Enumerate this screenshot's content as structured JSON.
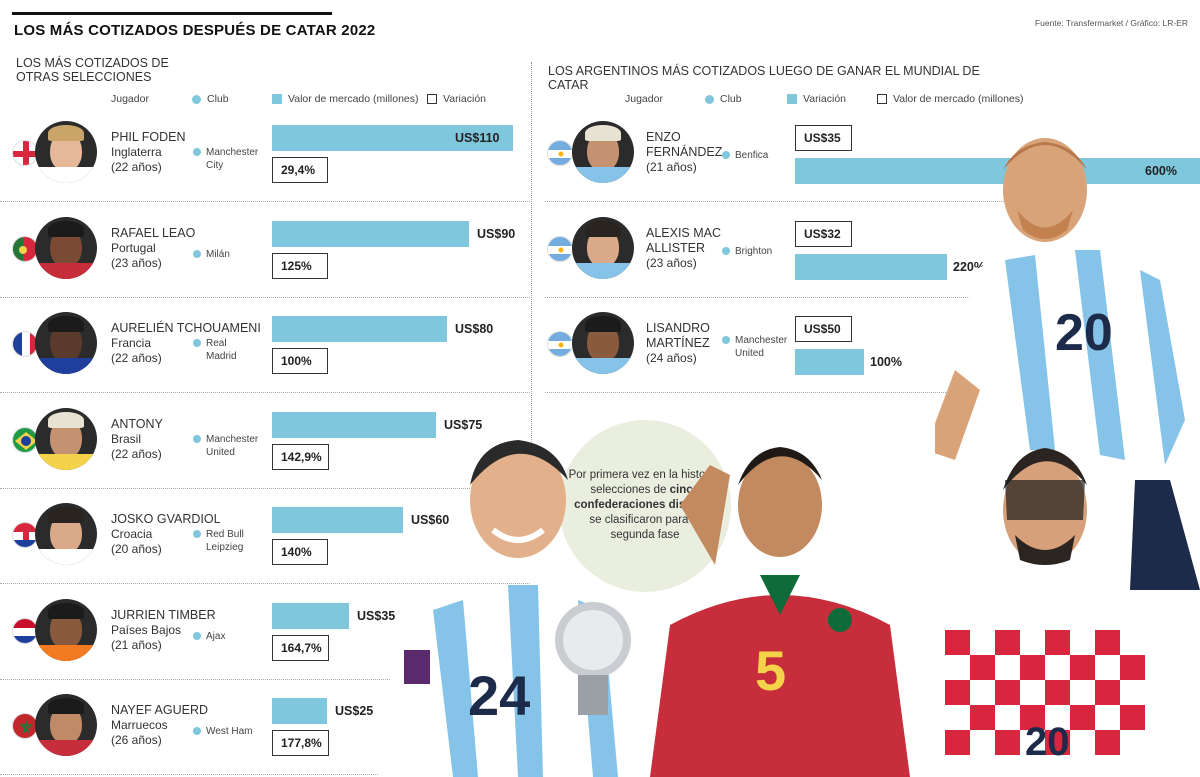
{
  "header": {
    "title": "LOS MÁS COTIZADOS DESPUÉS DE CATAR 2022",
    "source": "Fuente: Transfermarket / Gráfico: LR-ER"
  },
  "left_panel": {
    "subtitle": "LOS MÁS COTIZADOS DE OTRAS SELECCIONES",
    "legend": {
      "player": "Jugador",
      "club": "Club",
      "value": "Valor de mercado (millones)",
      "variation": "Variación"
    }
  },
  "right_panel": {
    "subtitle": "LOS ARGENTINOS MÁS COTIZADOS LUEGO DE GANAR EL MUNDIAL DE CATAR",
    "legend": {
      "player": "Jugador",
      "club": "Club",
      "variation": "Variación",
      "value": "Valor de mercado (millones)"
    }
  },
  "callout": {
    "before": "Por primera vez en la historia, selecciones de",
    "bold": "cinco confederaciones distintas",
    "after": "se clasificaron para la segunda fase"
  },
  "colors": {
    "bar": "#7ec7dd",
    "callout_bg": "#eaeedf",
    "text": "#222222"
  },
  "chart_data": [
    {
      "type": "bar",
      "series": [
        {
          "name": "Valor de mercado (millones)",
          "values": [
            110,
            90,
            80,
            75,
            60,
            35,
            25
          ]
        },
        {
          "name": "Variación",
          "values": [
            29.4,
            125,
            100,
            142.9,
            140,
            164.7,
            177.8
          ]
        }
      ],
      "players": [
        {
          "name": "PHIL FODEN",
          "country": "Inglaterra",
          "age": "(22 años)",
          "club": [
            "Manchester",
            "City"
          ],
          "value": 110,
          "value_label": "US$110",
          "variation": 29.4,
          "variation_label": "29,4%",
          "flag": "england"
        },
        {
          "name": "RAFAEL LEAO",
          "country": "Portugal",
          "age": "(23 años)",
          "club": [
            "Milán"
          ],
          "value": 90,
          "value_label": "US$90",
          "variation": 125,
          "variation_label": "125%",
          "flag": "portugal"
        },
        {
          "name": "AURELIÉN TCHOUAMENI",
          "country": "Francia",
          "age": "(22 años)",
          "club": [
            "Real",
            "Madrid"
          ],
          "value": 80,
          "value_label": "US$80",
          "variation": 100,
          "variation_label": "100%",
          "flag": "france"
        },
        {
          "name": "ANTONY",
          "country": "Brasil",
          "age": "(22 años)",
          "club": [
            "Manchester",
            "United"
          ],
          "value": 75,
          "value_label": "US$75",
          "variation": 142.9,
          "variation_label": "142,9%",
          "flag": "brazil"
        },
        {
          "name": "JOSKO GVARDIOL",
          "country": "Croacia",
          "age": "(20 años)",
          "club": [
            "Red Bull",
            "Leipzieg"
          ],
          "value": 60,
          "value_label": "US$60",
          "variation": 140,
          "variation_label": "140%",
          "flag": "croatia"
        },
        {
          "name": "JURRIEN TIMBER",
          "country": "Países Bajos",
          "age": "(21 años)",
          "club": [
            "Ajax"
          ],
          "value": 35,
          "value_label": "US$35",
          "variation": 164.7,
          "variation_label": "164,7%",
          "flag": "netherlands"
        },
        {
          "name": "NAYEF AGUERD",
          "country": "Marruecos",
          "age": "(26 años)",
          "club": [
            "West Ham"
          ],
          "value": 25,
          "value_label": "US$25",
          "variation": 177.8,
          "variation_label": "177,8%",
          "flag": "morocco"
        }
      ]
    },
    {
      "type": "bar",
      "series": [
        {
          "name": "Variación",
          "values": [
            600,
            220,
            100
          ]
        },
        {
          "name": "Valor de mercado (millones)",
          "values": [
            35,
            32,
            50
          ]
        }
      ],
      "players": [
        {
          "name_lines": [
            "ENZO",
            "FERNÁNDEZ"
          ],
          "age": "(21 años)",
          "club": [
            "Benfica"
          ],
          "value": 35,
          "value_label": "US$35",
          "variation": 600,
          "variation_label": "600%",
          "flag": "argentina"
        },
        {
          "name_lines": [
            "ALEXIS MAC",
            "ALLISTER"
          ],
          "age": "(23 años)",
          "club": [
            "Brighton"
          ],
          "value": 32,
          "value_label": "US$32",
          "variation": 220,
          "variation_label": "220%",
          "flag": "argentina"
        },
        {
          "name_lines": [
            "LISANDRO",
            "MARTÍNEZ"
          ],
          "age": "(24 años)",
          "club": [
            "Manchester",
            "United"
          ],
          "value": 50,
          "value_label": "US$50",
          "variation": 100,
          "variation_label": "100%",
          "flag": "argentina"
        }
      ]
    }
  ]
}
